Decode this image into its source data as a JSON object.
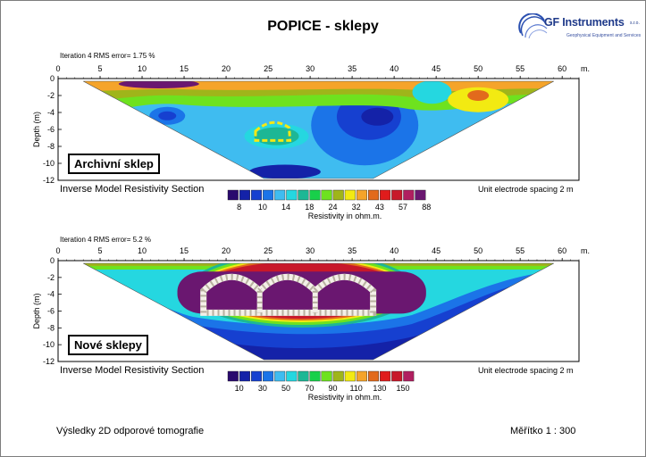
{
  "header": {
    "title": "POPICE - sklepy",
    "logo_text": "GF Instruments",
    "logo_suffix": "s.r.o.",
    "logo_sub": "Geophysical Equipment and Services"
  },
  "colors": {
    "palette": [
      "#2a0a6e",
      "#1422a8",
      "#1640d0",
      "#1b74e8",
      "#3fbcf0",
      "#25d7e0",
      "#1db795",
      "#18d04a",
      "#6ee21f",
      "#9fb51a",
      "#f2ea12",
      "#f5a42a",
      "#e26a1c",
      "#e01c1c",
      "#c8182a",
      "#b01f60",
      "#6a1770"
    ]
  },
  "chart_data": [
    {
      "type": "heatmap",
      "name": "Archivní sklep",
      "iteration_text": "Iteration 4 RMS error= 1.75 %",
      "x_unit": "m.",
      "x_ticks": [
        0,
        5,
        10,
        15,
        20,
        25,
        30,
        35,
        40,
        45,
        50,
        55,
        60
      ],
      "y_ticks": [
        0,
        -2,
        -4,
        -6,
        -8,
        -10,
        -12
      ],
      "ylabel": "Depth (m)",
      "section_title": "Inverse Model Resistivity Section",
      "spacing_text": "Unit electrode spacing 2 m",
      "legend_values": [
        "8",
        "10",
        "14",
        "18",
        "24",
        "32",
        "43",
        "57",
        "88"
      ],
      "legend_label": "Resistivity in ohm.m.",
      "xlim": [
        0,
        62
      ],
      "ylim": [
        -12,
        0
      ]
    },
    {
      "type": "heatmap",
      "name": "Nové sklepy",
      "iteration_text": "Iteration 4 RMS error= 5.2 %",
      "x_unit": "m.",
      "x_ticks": [
        0,
        5,
        10,
        15,
        20,
        25,
        30,
        35,
        40,
        45,
        50,
        55,
        60
      ],
      "y_ticks": [
        0,
        -2,
        -4,
        -6,
        -8,
        -10,
        -12
      ],
      "ylabel": "Depth (m)",
      "section_title": "Inverse Model Resistivity Section",
      "spacing_text": "Unit electrode spacing 2 m",
      "legend_values": [
        "10",
        "30",
        "50",
        "70",
        "90",
        "110",
        "130",
        "150"
      ],
      "legend_label": "Resistivity in ohm.m.",
      "xlim": [
        0,
        62
      ],
      "ylim": [
        -12,
        0
      ]
    }
  ],
  "footer": {
    "left": "Výsledky 2D odporové tomografie",
    "right": "Měřítko 1 : 300"
  }
}
